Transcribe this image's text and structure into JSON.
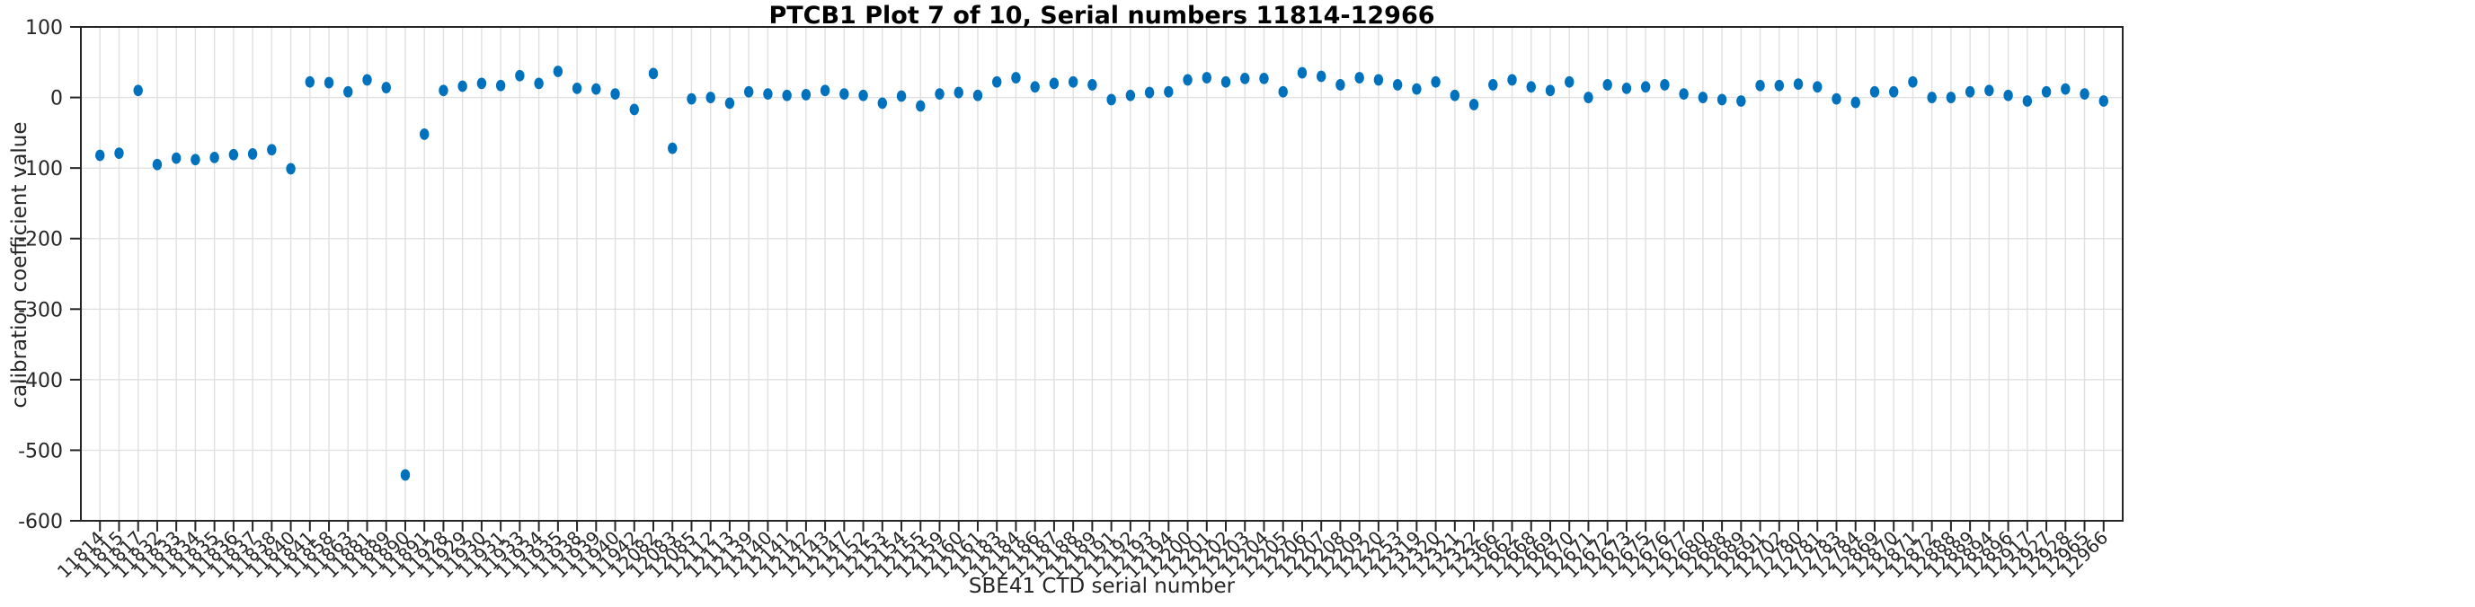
{
  "chart_data": {
    "type": "scatter",
    "title": "PTCB1 Plot 7 of 10, Serial numbers 11814-12966",
    "xlabel": "SBE41 CTD serial number",
    "ylabel": "calibration coefficient value",
    "ylim": [
      -600,
      100
    ],
    "y_ticks": [
      100,
      0,
      -100,
      -200,
      -300,
      -400,
      -500,
      -600
    ],
    "grid": true,
    "legend": "none",
    "marker": "filled-circle",
    "marker_color": "#0072BD",
    "axis_color": "#262626",
    "grid_color": "#e0e0e0",
    "x_tick_labels": [
      "11814",
      "11815",
      "11817",
      "11832",
      "11833",
      "11834",
      "11835",
      "11836",
      "11837",
      "11838",
      "11840",
      "11841",
      "11858",
      "11863",
      "11881",
      "11889",
      "11890",
      "11891",
      "11928",
      "11929",
      "11930",
      "11931",
      "11933",
      "11934",
      "11935",
      "11938",
      "11939",
      "11940",
      "11942",
      "12082",
      "12083",
      "12085",
      "12112",
      "12113",
      "12139",
      "12140",
      "12141",
      "12142",
      "12143",
      "12147",
      "12152",
      "12153",
      "12154",
      "12155",
      "12159",
      "12160",
      "12161",
      "12183",
      "12184",
      "12186",
      "12187",
      "12188",
      "12189",
      "12191",
      "12192",
      "12193",
      "12194",
      "12200",
      "12201",
      "12202",
      "12203",
      "12204",
      "12205",
      "12206",
      "12207",
      "12208",
      "12209",
      "12220",
      "12253",
      "12319",
      "12320",
      "12321",
      "12322",
      "12366",
      "12662",
      "12668",
      "12669",
      "12670",
      "12671",
      "12672",
      "12673",
      "12675",
      "12676",
      "12677",
      "12680",
      "12688",
      "12689",
      "12691",
      "12702",
      "12780",
      "12781",
      "12783",
      "12784",
      "12869",
      "12870",
      "12871",
      "12872",
      "12888",
      "12889",
      "12894",
      "12896",
      "12917",
      "12927",
      "12928",
      "12965",
      "12966"
    ],
    "values": [
      -82,
      -79,
      10,
      -95,
      -86,
      -88,
      -85,
      -81,
      -80,
      -74,
      -101,
      22,
      21,
      8,
      25,
      14,
      -535,
      -52,
      10,
      16,
      20,
      17,
      31,
      20,
      37,
      13,
      12,
      5,
      -17,
      34,
      -72,
      -2,
      0,
      -8,
      8,
      5,
      3,
      4,
      10,
      5,
      3,
      -8,
      2,
      -12,
      5,
      7,
      3,
      22,
      28,
      15,
      20,
      22,
      18,
      -3,
      3,
      7,
      8,
      25,
      28,
      22,
      27,
      27,
      8,
      35,
      30,
      18,
      28,
      25,
      18,
      12,
      22,
      3,
      -10,
      18,
      25,
      15,
      10,
      22,
      0,
      18,
      13,
      15,
      18,
      5,
      0,
      -3,
      -5,
      17,
      17,
      19,
      15,
      -2,
      -7,
      8,
      8,
      22,
      0,
      0,
      8,
      10,
      3,
      -5,
      8,
      12,
      5,
      -5
    ]
  }
}
